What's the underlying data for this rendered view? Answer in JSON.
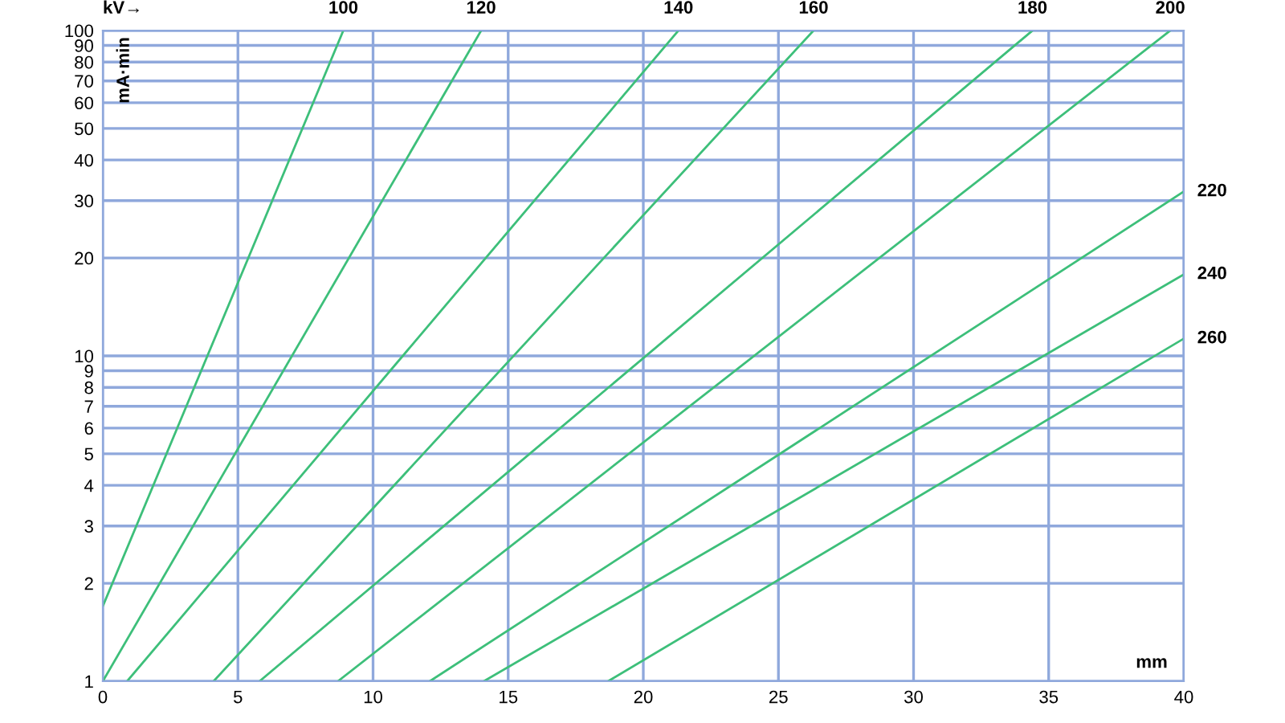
{
  "chart_data": {
    "type": "line",
    "xlabel": "mm",
    "ylabel": "mA·min",
    "annotations": [
      "kV→"
    ],
    "log": "y",
    "grid": true,
    "legend": false,
    "marker": "none",
    "line_style": "solid",
    "xlim": [
      0,
      40
    ],
    "xticks": [
      0,
      5,
      10,
      15,
      20,
      25,
      30,
      35,
      40
    ],
    "ylim": [
      1,
      100
    ],
    "yticks": [
      1,
      2,
      3,
      4,
      5,
      6,
      7,
      8,
      9,
      10,
      20,
      30,
      40,
      50,
      60,
      70,
      80,
      90,
      100
    ],
    "series": [
      {
        "name": "100",
        "color": "#3dbf7a",
        "x": [
          0,
          8.9
        ],
        "values": [
          1.7,
          100
        ]
      },
      {
        "name": "120",
        "color": "#3dbf7a",
        "x": [
          0,
          14.0
        ],
        "values": [
          1,
          100
        ]
      },
      {
        "name": "140",
        "color": "#3dbf7a",
        "x": [
          0.9,
          21.3
        ],
        "values": [
          1,
          100
        ]
      },
      {
        "name": "160",
        "color": "#3dbf7a",
        "x": [
          4.1,
          26.3
        ],
        "values": [
          1,
          100
        ]
      },
      {
        "name": "180",
        "color": "#3dbf7a",
        "x": [
          5.8,
          34.4
        ],
        "values": [
          1,
          100
        ]
      },
      {
        "name": "200",
        "color": "#3dbf7a",
        "x": [
          8.7,
          39.5
        ],
        "values": [
          1,
          100
        ]
      },
      {
        "name": "220",
        "color": "#3dbf7a",
        "x": [
          12.1,
          40
        ],
        "values": [
          1,
          32
        ]
      },
      {
        "name": "240",
        "color": "#3dbf7a",
        "x": [
          14.1,
          40
        ],
        "values": [
          1,
          17.8
        ]
      },
      {
        "name": "260",
        "color": "#3dbf7a",
        "x": [
          18.7,
          40
        ],
        "values": [
          1,
          11.3
        ]
      }
    ]
  }
}
